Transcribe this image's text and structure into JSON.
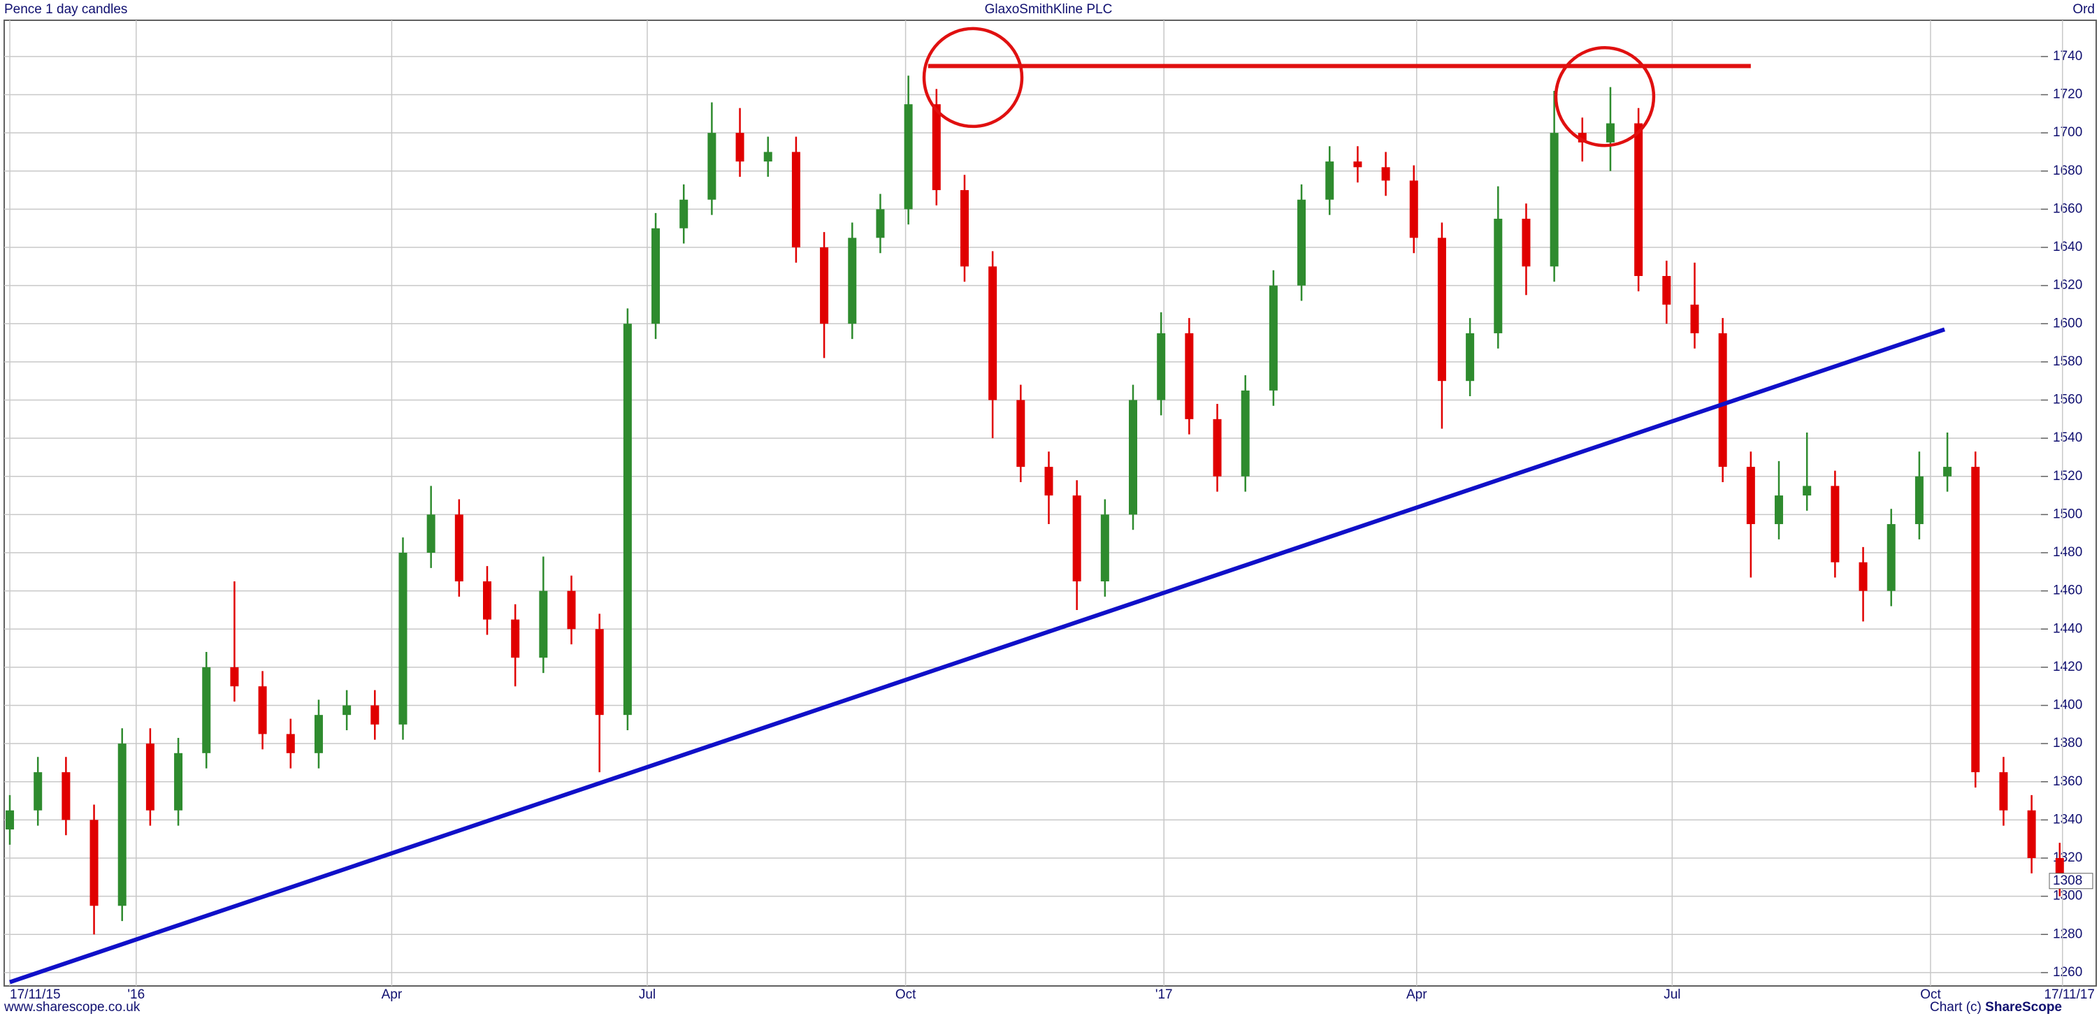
{
  "chart_data": {
    "type": "candlestick",
    "title": "GlaxoSmithKline PLC",
    "subtitle": "Pence 1 day candles",
    "share_class": "Ord",
    "footer_left": "www.sharescope.co.uk",
    "footer_right": [
      "Chart (c) ",
      "ShareScope"
    ],
    "up_color": "#2e8b2e",
    "down_color": "#e00000",
    "grid": true,
    "xlim": [
      -2,
      743
    ],
    "xticks": [
      {
        "value": 0,
        "label": "17/11/15"
      },
      {
        "value": 45,
        "label": "'16"
      },
      {
        "value": 136,
        "label": "Apr"
      },
      {
        "value": 227,
        "label": "Jul"
      },
      {
        "value": 319,
        "label": "Oct"
      },
      {
        "value": 411,
        "label": "'17"
      },
      {
        "value": 501,
        "label": "Apr"
      },
      {
        "value": 592,
        "label": "Jul"
      },
      {
        "value": 684,
        "label": "Oct"
      },
      {
        "value": 731,
        "label": "17/11/17"
      }
    ],
    "ylim": [
      1253,
      1759
    ],
    "yticks": [
      1260,
      1280,
      1300,
      1320,
      1340,
      1360,
      1380,
      1400,
      1420,
      1440,
      1460,
      1480,
      1500,
      1520,
      1540,
      1560,
      1580,
      1600,
      1620,
      1640,
      1660,
      1680,
      1700,
      1720,
      1740
    ],
    "last_price": 1308,
    "x": [
      0,
      10,
      20,
      30,
      40,
      50,
      60,
      70,
      80,
      90,
      100,
      110,
      120,
      130,
      140,
      150,
      160,
      170,
      180,
      190,
      200,
      210,
      220,
      230,
      240,
      250,
      260,
      270,
      280,
      290,
      300,
      310,
      320,
      330,
      340,
      350,
      360,
      370,
      380,
      390,
      400,
      410,
      420,
      430,
      440,
      450,
      460,
      470,
      480,
      490,
      500,
      510,
      520,
      530,
      540,
      550,
      560,
      570,
      580,
      590,
      600,
      610,
      620,
      630,
      640,
      650,
      660,
      670,
      680,
      690,
      700,
      710,
      720,
      730
    ],
    "open": [
      1335,
      1345,
      1365,
      1340,
      1295,
      1380,
      1345,
      1375,
      1420,
      1410,
      1385,
      1375,
      1395,
      1400,
      1390,
      1480,
      1500,
      1465,
      1445,
      1425,
      1460,
      1440,
      1395,
      1600,
      1650,
      1665,
      1700,
      1685,
      1690,
      1640,
      1600,
      1645,
      1660,
      1715,
      1670,
      1630,
      1560,
      1525,
      1510,
      1465,
      1500,
      1560,
      1595,
      1550,
      1520,
      1565,
      1620,
      1665,
      1685,
      1682,
      1675,
      1645,
      1570,
      1595,
      1655,
      1630,
      1700,
      1695,
      1705,
      1625,
      1610,
      1595,
      1525,
      1495,
      1510,
      1515,
      1475,
      1460,
      1495,
      1520,
      1525,
      1365,
      1345,
      1320
    ],
    "high": [
      1353,
      1373,
      1373,
      1348,
      1388,
      1388,
      1383,
      1428,
      1465,
      1418,
      1393,
      1403,
      1408,
      1408,
      1488,
      1515,
      1508,
      1473,
      1453,
      1478,
      1468,
      1448,
      1608,
      1658,
      1673,
      1716,
      1713,
      1698,
      1698,
      1648,
      1653,
      1668,
      1730,
      1723,
      1678,
      1638,
      1568,
      1533,
      1518,
      1508,
      1568,
      1606,
      1603,
      1558,
      1573,
      1628,
      1673,
      1693,
      1693,
      1690,
      1683,
      1653,
      1603,
      1672,
      1663,
      1722,
      1708,
      1724,
      1713,
      1633,
      1632,
      1603,
      1533,
      1528,
      1543,
      1523,
      1483,
      1503,
      1533,
      1543,
      1533,
      1373,
      1353,
      1328
    ],
    "low": [
      1327,
      1337,
      1332,
      1280,
      1287,
      1337,
      1337,
      1367,
      1402,
      1377,
      1367,
      1367,
      1387,
      1382,
      1382,
      1472,
      1457,
      1437,
      1410,
      1417,
      1432,
      1365,
      1387,
      1592,
      1642,
      1657,
      1677,
      1677,
      1632,
      1582,
      1592,
      1637,
      1652,
      1662,
      1622,
      1540,
      1517,
      1495,
      1450,
      1457,
      1492,
      1552,
      1542,
      1512,
      1512,
      1557,
      1612,
      1657,
      1674,
      1667,
      1637,
      1545,
      1562,
      1587,
      1615,
      1622,
      1685,
      1680,
      1617,
      1600,
      1587,
      1517,
      1467,
      1487,
      1502,
      1467,
      1444,
      1452,
      1487,
      1512,
      1357,
      1337,
      1312,
      1300
    ],
    "close": [
      1345,
      1365,
      1340,
      1295,
      1380,
      1345,
      1375,
      1420,
      1410,
      1385,
      1375,
      1395,
      1400,
      1390,
      1480,
      1500,
      1465,
      1445,
      1425,
      1460,
      1440,
      1395,
      1600,
      1650,
      1665,
      1700,
      1685,
      1690,
      1640,
      1600,
      1645,
      1660,
      1715,
      1670,
      1630,
      1560,
      1525,
      1510,
      1465,
      1500,
      1560,
      1595,
      1550,
      1520,
      1565,
      1620,
      1665,
      1685,
      1682,
      1675,
      1645,
      1570,
      1595,
      1655,
      1630,
      1700,
      1695,
      1705,
      1625,
      1610,
      1595,
      1525,
      1495,
      1510,
      1515,
      1475,
      1460,
      1495,
      1520,
      1525,
      1365,
      1345,
      1320,
      1305
    ],
    "trendlines": [
      {
        "color": "#1010c8",
        "x": [
          0,
          689
        ],
        "y": [
          1255,
          1597
        ]
      },
      {
        "color": "#e01010",
        "x": [
          327,
          620
        ],
        "y": [
          1735,
          1735
        ]
      }
    ],
    "circles": [
      {
        "color": "#e01010",
        "x": 343,
        "y": 1729
      },
      {
        "color": "#e01010",
        "x": 568,
        "y": 1719
      }
    ]
  }
}
